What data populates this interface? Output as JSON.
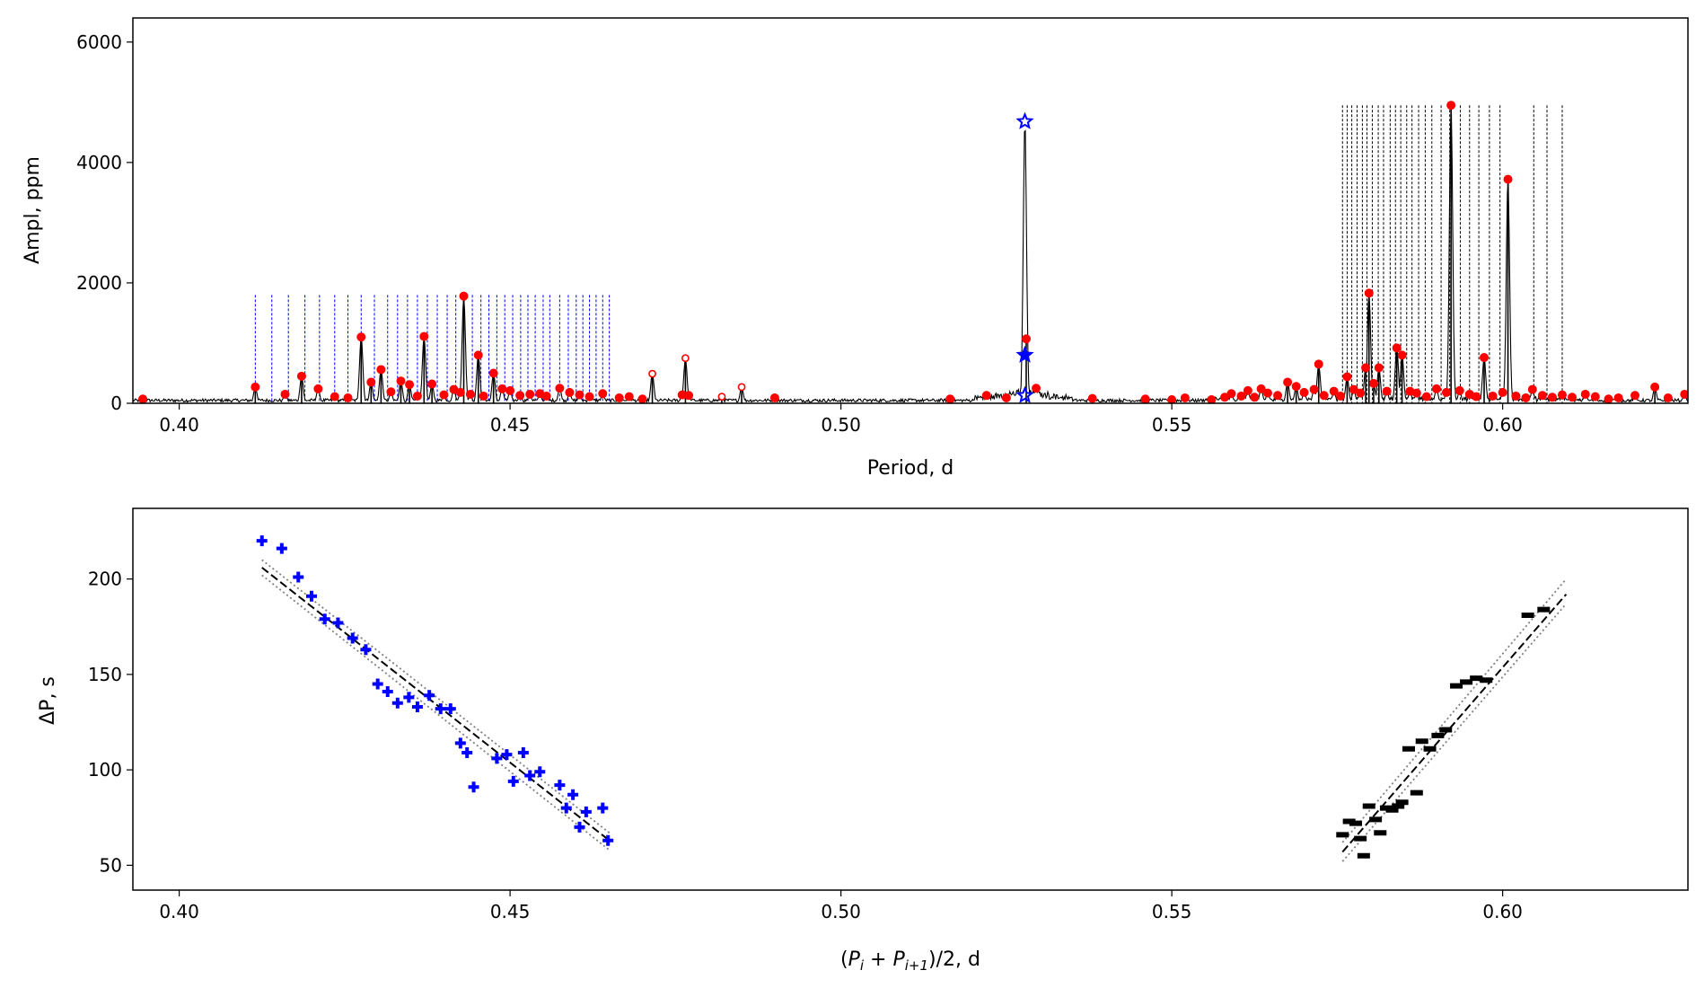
{
  "chart_data": [
    {
      "type": "line",
      "panel": "top",
      "xlabel": "Period, d",
      "ylabel": "Ampl, ppm",
      "xlim": [
        0.393,
        0.628
      ],
      "ylim": [
        0,
        6400
      ],
      "xticks": [
        0.4,
        0.45,
        0.5,
        0.55,
        0.6
      ],
      "xtick_labels": [
        "0.40",
        "0.45",
        "0.50",
        "0.55",
        "0.60"
      ],
      "yticks": [
        0,
        2000,
        4000,
        6000
      ],
      "ytick_labels": [
        "0",
        "2000",
        "4000",
        "6000"
      ],
      "colors": {
        "spectrum": "#000000",
        "peak": "#ff0000",
        "blue_series": "#0000ff",
        "black_series": "#000000"
      },
      "noise_level": 60,
      "filled_peaks": [
        [
          0.3945,
          70
        ],
        [
          0.4115,
          270
        ],
        [
          0.416,
          150
        ],
        [
          0.4185,
          450
        ],
        [
          0.421,
          240
        ],
        [
          0.4235,
          110
        ],
        [
          0.4255,
          90
        ],
        [
          0.4275,
          1100
        ],
        [
          0.429,
          350
        ],
        [
          0.4305,
          560
        ],
        [
          0.432,
          190
        ],
        [
          0.4335,
          370
        ],
        [
          0.4348,
          310
        ],
        [
          0.436,
          120
        ],
        [
          0.437,
          1110
        ],
        [
          0.4382,
          320
        ],
        [
          0.44,
          140
        ],
        [
          0.4415,
          230
        ],
        [
          0.4425,
          180
        ],
        [
          0.443,
          1780
        ],
        [
          0.444,
          150
        ],
        [
          0.4452,
          800
        ],
        [
          0.446,
          120
        ],
        [
          0.4475,
          500
        ],
        [
          0.4488,
          240
        ],
        [
          0.45,
          210
        ],
        [
          0.4515,
          130
        ],
        [
          0.453,
          150
        ],
        [
          0.4545,
          160
        ],
        [
          0.4555,
          120
        ],
        [
          0.4575,
          250
        ],
        [
          0.459,
          180
        ],
        [
          0.4605,
          140
        ],
        [
          0.462,
          110
        ],
        [
          0.464,
          160
        ],
        [
          0.4665,
          90
        ],
        [
          0.468,
          110
        ],
        [
          0.47,
          70
        ],
        [
          0.476,
          140
        ],
        [
          0.477,
          130
        ],
        [
          0.49,
          90
        ],
        [
          0.5165,
          70
        ],
        [
          0.522,
          130
        ],
        [
          0.525,
          90
        ],
        [
          0.528,
          1070
        ],
        [
          0.5295,
          250
        ],
        [
          0.538,
          80
        ],
        [
          0.546,
          70
        ],
        [
          0.55,
          60
        ],
        [
          0.552,
          90
        ],
        [
          0.556,
          60
        ],
        [
          0.558,
          100
        ],
        [
          0.559,
          160
        ],
        [
          0.5605,
          120
        ],
        [
          0.5615,
          210
        ],
        [
          0.5625,
          100
        ],
        [
          0.5635,
          240
        ],
        [
          0.5645,
          170
        ],
        [
          0.566,
          130
        ],
        [
          0.5675,
          350
        ],
        [
          0.5688,
          280
        ],
        [
          0.57,
          180
        ],
        [
          0.5715,
          230
        ],
        [
          0.5722,
          650
        ],
        [
          0.573,
          130
        ],
        [
          0.5745,
          200
        ],
        [
          0.5755,
          120
        ],
        [
          0.5765,
          440
        ],
        [
          0.5775,
          230
        ],
        [
          0.5785,
          170
        ],
        [
          0.5793,
          590
        ],
        [
          0.5798,
          1830
        ],
        [
          0.5805,
          330
        ],
        [
          0.5813,
          590
        ],
        [
          0.5825,
          200
        ],
        [
          0.584,
          920
        ],
        [
          0.5848,
          800
        ],
        [
          0.586,
          200
        ],
        [
          0.587,
          170
        ],
        [
          0.5885,
          110
        ],
        [
          0.59,
          240
        ],
        [
          0.5915,
          180
        ],
        [
          0.5922,
          4950
        ],
        [
          0.5935,
          210
        ],
        [
          0.595,
          150
        ],
        [
          0.596,
          110
        ],
        [
          0.5972,
          760
        ],
        [
          0.5985,
          120
        ],
        [
          0.6,
          180
        ],
        [
          0.6008,
          3720
        ],
        [
          0.602,
          120
        ],
        [
          0.6035,
          90
        ],
        [
          0.6045,
          230
        ],
        [
          0.606,
          130
        ],
        [
          0.6075,
          100
        ],
        [
          0.609,
          140
        ],
        [
          0.6105,
          100
        ],
        [
          0.6125,
          150
        ],
        [
          0.614,
          110
        ],
        [
          0.616,
          70
        ],
        [
          0.6175,
          90
        ],
        [
          0.62,
          130
        ],
        [
          0.623,
          270
        ],
        [
          0.625,
          90
        ],
        [
          0.6275,
          150
        ]
      ],
      "hollow_peaks": [
        [
          0.4715,
          490
        ],
        [
          0.4765,
          750
        ],
        [
          0.482,
          110
        ],
        [
          0.485,
          270
        ]
      ],
      "blue_markers": [
        {
          "x": 0.5278,
          "y": 4680,
          "marker": "star-open"
        },
        {
          "x": 0.5278,
          "y": 800,
          "marker": "star-filled"
        },
        {
          "x": 0.5278,
          "y": 130,
          "marker": "star-open"
        }
      ],
      "blue_comb_periods": [
        0.4115,
        0.414,
        0.4165,
        0.419,
        0.4212,
        0.4235,
        0.4255,
        0.4275,
        0.4295,
        0.4315,
        0.433,
        0.4345,
        0.436,
        0.4375,
        0.439,
        0.4405,
        0.4418,
        0.443,
        0.4443,
        0.4456,
        0.4468,
        0.448,
        0.4492,
        0.4504,
        0.4516,
        0.4527,
        0.4538,
        0.455,
        0.456,
        0.4575,
        0.4588,
        0.46,
        0.461,
        0.462,
        0.463,
        0.464,
        0.465
      ],
      "blue_comb_height": 1800,
      "black_comb_periods": [
        0.5758,
        0.5765,
        0.5772,
        0.578,
        0.5788,
        0.5795,
        0.5803,
        0.5812,
        0.582,
        0.583,
        0.5838,
        0.5846,
        0.5855,
        0.5863,
        0.5873,
        0.5883,
        0.5893,
        0.5907,
        0.592,
        0.5936,
        0.595,
        0.5964,
        0.598,
        0.5996,
        0.6047,
        0.6067,
        0.609
      ],
      "black_comb_height": 4950
    },
    {
      "type": "scatter",
      "panel": "bottom",
      "xlabel": "(P_i + P_i+1)/2, d",
      "xlabel_parts": {
        "open": "(",
        "p1": "P",
        "sub1": "i",
        "plus": " + ",
        "p2": "P",
        "sub2": "i+1",
        "close": ")/2, d"
      },
      "ylabel": "ΔP, s",
      "xlim": [
        0.393,
        0.628
      ],
      "ylim": [
        37,
        237
      ],
      "xticks": [
        0.4,
        0.45,
        0.5,
        0.55,
        0.6
      ],
      "xtick_labels": [
        "0.40",
        "0.45",
        "0.50",
        "0.55",
        "0.60"
      ],
      "yticks": [
        50,
        100,
        150,
        200
      ],
      "ytick_labels": [
        "50",
        "100",
        "150",
        "200"
      ],
      "series": [
        {
          "name": "blue",
          "marker": "plus",
          "color": "#0000ff",
          "points": [
            [
              0.4125,
              220
            ],
            [
              0.4155,
              216
            ],
            [
              0.418,
              201
            ],
            [
              0.42,
              191
            ],
            [
              0.422,
              179
            ],
            [
              0.424,
              177
            ],
            [
              0.4262,
              169
            ],
            [
              0.4282,
              163
            ],
            [
              0.43,
              145
            ],
            [
              0.4315,
              141
            ],
            [
              0.433,
              135
            ],
            [
              0.4347,
              138
            ],
            [
              0.436,
              133
            ],
            [
              0.4378,
              139
            ],
            [
              0.4395,
              132
            ],
            [
              0.441,
              132
            ],
            [
              0.4425,
              114
            ],
            [
              0.4435,
              109
            ],
            [
              0.4445,
              91
            ],
            [
              0.448,
              106
            ],
            [
              0.4495,
              108
            ],
            [
              0.4505,
              94
            ],
            [
              0.452,
              109
            ],
            [
              0.453,
              97
            ],
            [
              0.4545,
              99
            ],
            [
              0.4575,
              92
            ],
            [
              0.4585,
              80
            ],
            [
              0.4595,
              87
            ],
            [
              0.4605,
              70
            ],
            [
              0.4615,
              78
            ],
            [
              0.464,
              80
            ],
            [
              0.4648,
              63
            ]
          ],
          "fit": {
            "x": [
              0.4125,
              0.465
            ],
            "y": [
              206,
              63
            ]
          },
          "band": [
            {
              "x": [
                0.4125,
                0.465
              ],
              "y": [
                210,
                67
              ]
            },
            {
              "x": [
                0.4125,
                0.465
              ],
              "y": [
                202,
                58
              ]
            }
          ]
        },
        {
          "name": "black",
          "marker": "dash",
          "color": "#000000",
          "points": [
            [
              0.5758,
              66
            ],
            [
              0.5768,
              73
            ],
            [
              0.5778,
              72
            ],
            [
              0.5785,
              64
            ],
            [
              0.579,
              55
            ],
            [
              0.5798,
              81
            ],
            [
              0.5808,
              74
            ],
            [
              0.5815,
              67
            ],
            [
              0.5824,
              80
            ],
            [
              0.5833,
              79
            ],
            [
              0.5842,
              81
            ],
            [
              0.5848,
              83
            ],
            [
              0.5858,
              111
            ],
            [
              0.587,
              88
            ],
            [
              0.5878,
              115
            ],
            [
              0.589,
              111
            ],
            [
              0.5902,
              118
            ],
            [
              0.5914,
              121
            ],
            [
              0.593,
              144
            ],
            [
              0.5945,
              146
            ],
            [
              0.596,
              148
            ],
            [
              0.5975,
              147
            ],
            [
              0.6038,
              181
            ],
            [
              0.6062,
              184
            ]
          ],
          "fit": {
            "x": [
              0.5758,
              0.6096
            ],
            "y": [
              57,
              192
            ]
          },
          "band": [
            {
              "x": [
                0.5758,
                0.6096
              ],
              "y": [
                62,
                200
              ]
            },
            {
              "x": [
                0.5758,
                0.6096
              ],
              "y": [
                52,
                187
              ]
            }
          ]
        }
      ]
    }
  ]
}
